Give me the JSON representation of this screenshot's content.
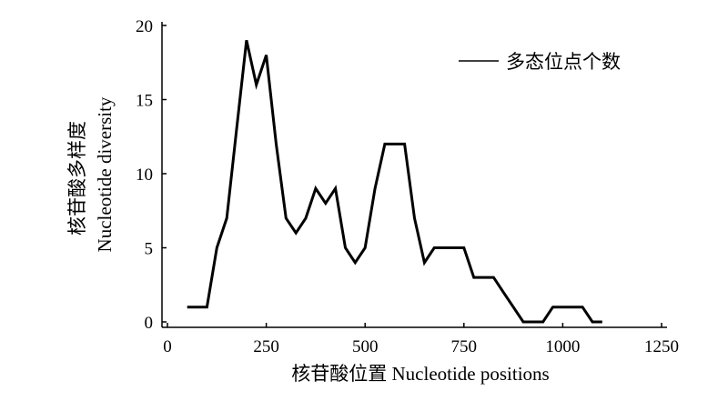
{
  "chart_data": {
    "type": "line",
    "xlabel": "核苷酸位置 Nucleotide positions",
    "ylabel_line1": "核苷酸多样度",
    "ylabel_line2": "Nucleotide diversity",
    "xlim": [
      0,
      1250
    ],
    "ylim": [
      0,
      20
    ],
    "xticks": [
      0,
      250,
      500,
      750,
      1000,
      1250
    ],
    "yticks": [
      0,
      5,
      10,
      15,
      20
    ],
    "grid": false,
    "legend_position": "top-right",
    "series": [
      {
        "name": "多态位点个数",
        "color": "#000000",
        "x": [
          50,
          100,
          125,
          150,
          175,
          200,
          225,
          250,
          275,
          300,
          325,
          350,
          375,
          400,
          425,
          450,
          475,
          500,
          525,
          550,
          575,
          600,
          625,
          650,
          675,
          700,
          725,
          750,
          775,
          800,
          825,
          850,
          875,
          900,
          925,
          950,
          975,
          1000,
          1025,
          1050,
          1075,
          1100
        ],
        "y": [
          1,
          1,
          5,
          7,
          13,
          19,
          16,
          18,
          12,
          7,
          6,
          7,
          9,
          8,
          9,
          5,
          4,
          5,
          9,
          12,
          12,
          12,
          7,
          4,
          5,
          5,
          5,
          5,
          3,
          3,
          3,
          2,
          1,
          0,
          0,
          0,
          1,
          1,
          1,
          1,
          0,
          0
        ]
      }
    ]
  }
}
